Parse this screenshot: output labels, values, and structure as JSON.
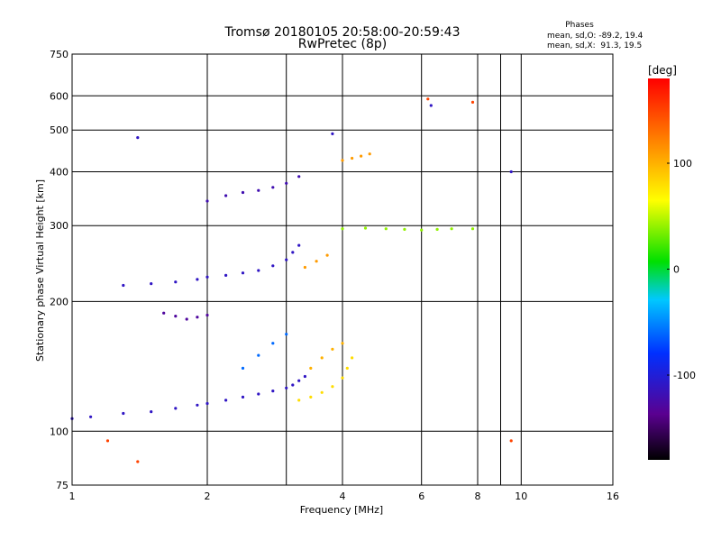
{
  "chart_data": {
    "type": "scatter",
    "title": "Tromsø 20180105 20:58:00-20:59:43",
    "subtitle": "RwPretec (8p)",
    "xlabel": "Frequency [MHz]",
    "ylabel": "Stationary phase Virtual Height [km]",
    "x_scale": "log",
    "y_scale": "log",
    "xlim": [
      1,
      16
    ],
    "ylim": [
      75,
      750
    ],
    "x_ticks": [
      1,
      2,
      4,
      6,
      8,
      10,
      16
    ],
    "x_tick_labels": [
      "1",
      "2",
      "4",
      "6",
      "8",
      "10",
      "16"
    ],
    "x_grid": [
      1,
      2,
      3,
      4,
      6,
      8,
      9,
      10,
      16
    ],
    "y_ticks": [
      75,
      100,
      200,
      300,
      400,
      500,
      600,
      750
    ],
    "y_tick_labels": [
      "75",
      "100",
      "200",
      "300",
      "400",
      "500",
      "600",
      "750"
    ],
    "grid": true,
    "phases_box": {
      "title": "Phases",
      "line1": "mean, sd,O: -89.2, 19.4",
      "line2": "mean, sd,X:  91.3, 19.5"
    },
    "colorbar": {
      "label": "[deg]",
      "range": [
        -180,
        180
      ],
      "ticks": [
        100,
        0,
        -100
      ],
      "tick_labels": [
        "100",
        "0",
        "-100"
      ],
      "colormap": "rainbow (black-purple-blue-cyan-green-yellow-red)"
    },
    "traces": [
      {
        "name": "",
        "x": [
          1.0,
          1.1,
          1.3,
          1.5,
          1.7,
          1.9,
          2.0,
          2.2,
          2.4,
          2.6,
          2.8,
          3.0,
          3.1,
          3.2,
          3.3
        ],
        "y": [
          107,
          108,
          110,
          111,
          113,
          115,
          116,
          118,
          120,
          122,
          124,
          126,
          128,
          131,
          134
        ],
        "phase": -110
      },
      {
        "name": "",
        "x": [
          3.2,
          3.4,
          3.6,
          3.8,
          4.0,
          4.1,
          4.2
        ],
        "y": [
          118,
          120,
          123,
          127,
          133,
          140,
          148
        ],
        "phase": 80
      },
      {
        "name": "",
        "x": [
          1.3,
          1.5,
          1.7,
          1.9,
          2.0,
          2.2,
          2.4,
          2.6,
          2.8,
          3.0,
          3.1,
          3.2
        ],
        "y": [
          218,
          220,
          222,
          225,
          228,
          230,
          233,
          236,
          242,
          250,
          260,
          270
        ],
        "phase": -110
      },
      {
        "name": "",
        "x": [
          2.0,
          2.2,
          2.4,
          2.6,
          2.8,
          3.0,
          3.2
        ],
        "y": [
          342,
          352,
          358,
          362,
          368,
          376,
          390
        ],
        "phase": -120
      },
      {
        "name": "",
        "x": [
          1.6,
          1.7,
          1.8,
          1.9,
          2.0
        ],
        "y": [
          188,
          185,
          182,
          184,
          186
        ],
        "phase": -130
      },
      {
        "name": "",
        "x": [
          2.4,
          2.6,
          2.8,
          3.0
        ],
        "y": [
          140,
          150,
          160,
          168
        ],
        "phase": -60
      },
      {
        "name": "",
        "x": [
          3.4,
          3.6,
          3.8,
          4.0
        ],
        "y": [
          140,
          148,
          155,
          160
        ],
        "phase": 100
      },
      {
        "name": "",
        "x": [
          3.3,
          3.5,
          3.7
        ],
        "y": [
          240,
          248,
          256
        ],
        "phase": 110
      },
      {
        "name": "",
        "x": [
          4.0,
          4.2,
          4.4,
          4.6
        ],
        "y": [
          425,
          430,
          435,
          440
        ],
        "phase": 110
      },
      {
        "name": "",
        "x": [
          4.0,
          4.5,
          5.0,
          5.5,
          6.0,
          6.5,
          7.0,
          7.8
        ],
        "y": [
          295,
          296,
          295,
          294,
          293,
          294,
          295,
          295
        ],
        "phase": 40
      },
      {
        "name": "",
        "x": [
          1.4,
          3.8,
          6.3,
          9.5
        ],
        "y": [
          480,
          490,
          570,
          400
        ],
        "phase": -110
      },
      {
        "name": "",
        "x": [
          1.2,
          1.4,
          6.2,
          7.8,
          9.5
        ],
        "y": [
          95,
          85,
          590,
          580,
          95
        ],
        "phase": 150
      }
    ]
  }
}
